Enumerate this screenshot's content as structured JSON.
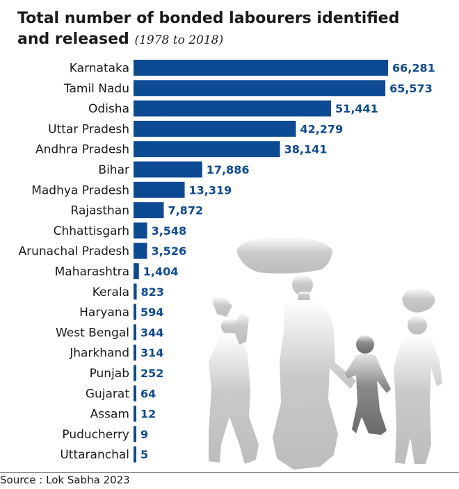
{
  "title_line1": "Total number of bonded labourers identified",
  "title_line2": "and released",
  "title_period": "(1978 to 2018)",
  "source": "Source : Lok Sabha 2023",
  "colors": {
    "bar": "#0d4a94",
    "label": "#1a1a1a",
    "value": "#0d4a94"
  },
  "chart_data": {
    "type": "bar",
    "orientation": "horizontal",
    "title": "Total number of bonded labourers identified and released (1978 to 2018)",
    "categories": [
      "Karnataka",
      "Tamil Nadu",
      "Odisha",
      "Uttar Pradesh",
      "Andhra Pradesh",
      "Bihar",
      "Madhya Pradesh",
      "Rajasthan",
      "Chhattisgarh",
      "Arunachal Pradesh",
      "Maharashtra",
      "Kerala",
      "Haryana",
      "West Bengal",
      "Jharkhand",
      "Punjab",
      "Gujarat",
      "Assam",
      "Puducherry",
      "Uttaranchal"
    ],
    "values": [
      66281,
      65573,
      51441,
      42279,
      38141,
      17886,
      13319,
      7872,
      3548,
      3526,
      1404,
      823,
      594,
      344,
      314,
      252,
      64,
      12,
      9,
      5
    ],
    "value_labels": [
      "66,281",
      "65,573",
      "51,441",
      "42,279",
      "38,141",
      "17,886",
      "13,319",
      "7,872",
      "3,548",
      "3,526",
      "1,404",
      "823",
      "594",
      "344",
      "314",
      "252",
      "64",
      "12",
      "9",
      "5"
    ],
    "xlim": [
      0,
      66281
    ],
    "grid": false,
    "legend": "none"
  }
}
